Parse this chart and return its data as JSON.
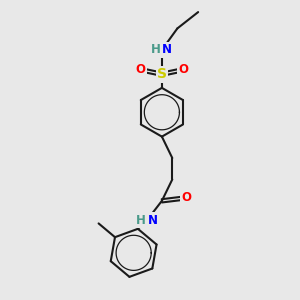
{
  "bg_color": "#e8e8e8",
  "bond_color": "#1a1a1a",
  "bond_width": 1.5,
  "colors": {
    "N": "#0000ff",
    "O": "#ff0000",
    "S": "#cccc00",
    "H": "#4a9a8a"
  },
  "font_size": 8.5,
  "figsize": [
    3.0,
    3.0
  ],
  "dpi": 100
}
